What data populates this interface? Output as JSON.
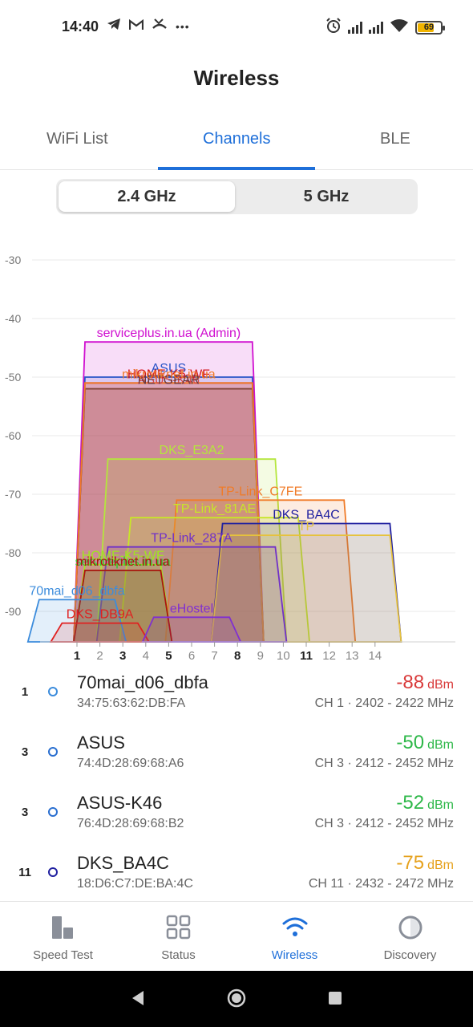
{
  "status_bar": {
    "time": "14:40",
    "left_icons": [
      "telegram-icon",
      "gmail-icon",
      "missed-call-icon",
      "more-dots-icon"
    ],
    "right_icons": [
      "alarm-icon",
      "signal-icon",
      "signal-icon",
      "wifi-icon",
      "battery-icon"
    ],
    "battery": "69",
    "more_glyph": "•••"
  },
  "title": "Wireless",
  "tabs": [
    {
      "label": "WiFi List",
      "active": false
    },
    {
      "label": "Channels",
      "active": true
    },
    {
      "label": "BLE",
      "active": false
    }
  ],
  "bands": [
    {
      "label": "2.4 GHz",
      "active": true
    },
    {
      "label": "5 GHz",
      "active": false
    }
  ],
  "chart_data": {
    "type": "area",
    "y_ticks": [
      "-30",
      "-40",
      "-50",
      "-60",
      "-70",
      "-80",
      "-90"
    ],
    "ylim": [
      -95,
      -25
    ],
    "x_ticks": [
      "1",
      "2",
      "3",
      "4",
      "5",
      "6",
      "7",
      "8",
      "9",
      "10",
      "11",
      "12",
      "13",
      "14"
    ],
    "x_ticks_bold": [
      "1",
      "3",
      "5",
      "8",
      "11"
    ],
    "networks": [
      {
        "name": "serviceplus.in.ua (Admin)",
        "center": 5,
        "width": 40,
        "dbm": -44,
        "color": "#d010d0"
      },
      {
        "name": "ASUS",
        "center": 5,
        "width": 40,
        "dbm": -50,
        "color": "#2a55c8"
      },
      {
        "name": "ASUS-K46",
        "center": 5,
        "width": 40,
        "dbm": -52,
        "color": "#d44a4a"
      },
      {
        "name": "HOME-K5-WF",
        "center": 5,
        "width": 40,
        "dbm": -51,
        "color": "#d2181e"
      },
      {
        "name": "NETGEAR",
        "center": 5,
        "width": 40,
        "dbm": -52,
        "color": "#6b3a3a"
      },
      {
        "name": "mikrotiknet.in.ua",
        "center": 5,
        "width": 40,
        "dbm": -51,
        "color": "#f07b28"
      },
      {
        "name": "DKS_E3A2",
        "center": 6,
        "width": 40,
        "dbm": -64,
        "color": "#b4e63c"
      },
      {
        "name": "TP-Link_C7FE",
        "center": 9,
        "width": 40,
        "dbm": -71,
        "color": "#f07b28"
      },
      {
        "name": "TP-Link_81AE",
        "center": 7,
        "width": 40,
        "dbm": -74,
        "color": "#c8e628"
      },
      {
        "name": "DKS_BA4C",
        "center": 11,
        "width": 40,
        "dbm": -75,
        "color": "#2020a0"
      },
      {
        "name": "TP",
        "center": 11,
        "width": 40,
        "dbm": -77,
        "color": "#e6c23c"
      },
      {
        "name": "TP-Link_287A",
        "center": 6,
        "width": 40,
        "dbm": -79,
        "color": "#7030c8"
      },
      {
        "name": "serviceplus.in.ua",
        "center": 3,
        "width": 20,
        "dbm": -83,
        "color": "#30c830"
      },
      {
        "name": "HOME-K5-WF",
        "center": 3,
        "width": 20,
        "dbm": -82,
        "color": "#a0e61e"
      },
      {
        "name": "mikrotiknet.in.ua",
        "center": 3,
        "width": 20,
        "dbm": -83,
        "color": "#b01010"
      },
      {
        "name": "70mai_d06_dbfa",
        "center": 1,
        "width": 20,
        "dbm": -88,
        "color": "#3c8cdc"
      },
      {
        "name": "DKS_DB9A",
        "center": 2,
        "width": 20,
        "dbm": -92,
        "color": "#e02020"
      },
      {
        "name": "eHostel",
        "center": 6,
        "width": 20,
        "dbm": -91,
        "color": "#8030d0"
      }
    ]
  },
  "networks_list": [
    {
      "channel": "1",
      "ssid": "70mai_d06_dbfa",
      "mac": "34:75:63:62:DB:FA",
      "dbm": "-88",
      "unit": "dBm",
      "info": "CH 1 · 2402 - 2422 MHz",
      "dbm_color": "#d93a3a",
      "dot_color": "#3c8cdc"
    },
    {
      "channel": "3",
      "ssid": "ASUS",
      "mac": "74:4D:28:69:68:A6",
      "dbm": "-50",
      "unit": "dBm",
      "info": "CH 3 · 2412 - 2452 MHz",
      "dbm_color": "#2fb84a",
      "dot_color": "#2a6fd0"
    },
    {
      "channel": "3",
      "ssid": "ASUS-K46",
      "mac": "76:4D:28:69:68:B2",
      "dbm": "-52",
      "unit": "dBm",
      "info": "CH 3 · 2412 - 2452 MHz",
      "dbm_color": "#2fb84a",
      "dot_color": "#2a6fd0"
    },
    {
      "channel": "11",
      "ssid": "DKS_BA4C",
      "mac": "18:D6:C7:DE:BA:4C",
      "dbm": "-75",
      "unit": "dBm",
      "info": "CH 11 · 2432 - 2472 MHz",
      "dbm_color": "#e6a21e",
      "dot_color": "#2020a0"
    }
  ],
  "bottom_nav": [
    {
      "label": "Speed Test",
      "icon": "speed-test-icon",
      "active": false
    },
    {
      "label": "Status",
      "icon": "status-grid-icon",
      "active": false
    },
    {
      "label": "Wireless",
      "icon": "wifi-icon",
      "active": true
    },
    {
      "label": "Discovery",
      "icon": "discovery-circle-icon",
      "active": false
    }
  ],
  "accent_color": "#1e6fd9"
}
